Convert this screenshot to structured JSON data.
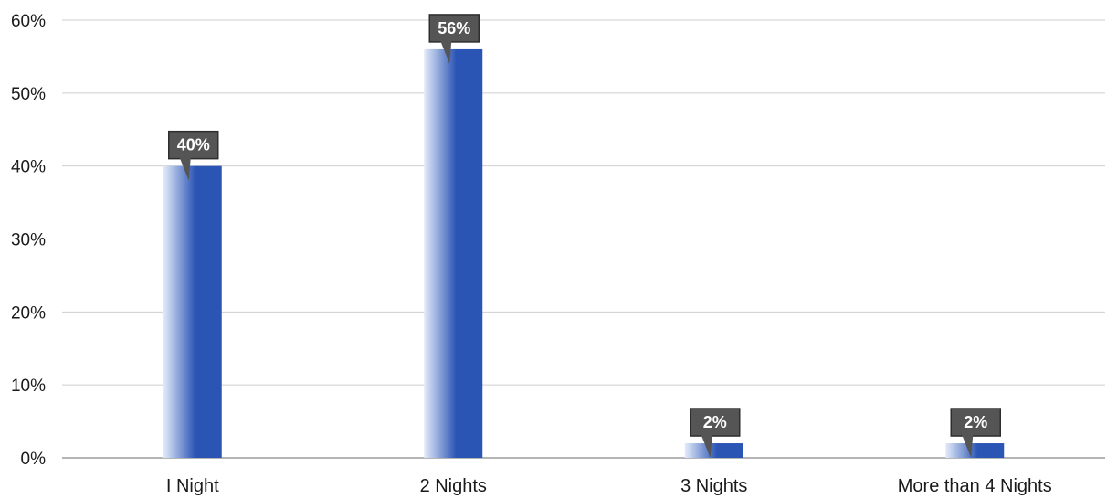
{
  "chart_data": {
    "type": "bar",
    "categories": [
      "I Night",
      "2 Nights",
      "3 Nights",
      "More than 4 Nights"
    ],
    "values": [
      40,
      56,
      2,
      2
    ],
    "data_labels": [
      "40%",
      "56%",
      "2%",
      "2%"
    ],
    "yticks": [
      "0%",
      "10%",
      "20%",
      "30%",
      "40%",
      "50%",
      "60%"
    ],
    "ylim": [
      0,
      60
    ],
    "grid": true,
    "colors": {
      "bar_dark": "#2b55b5",
      "bar_light": "#e4ecfa",
      "label_bg": "#555555",
      "grid": "#cfcfcf",
      "axis": "#b5b5b5"
    }
  }
}
